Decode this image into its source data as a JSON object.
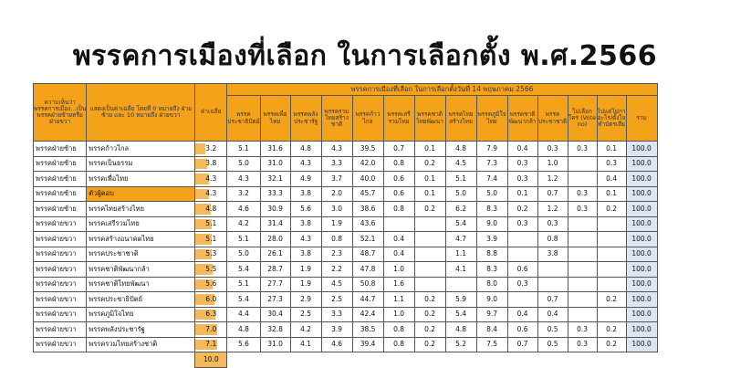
{
  "title": "พรรคการเมืองที่เลือก ในการเลือกตั้ง พ.ศ.2566",
  "header": {
    "col1": "ความเห็นว่าพรรคการเมือง...เป็นพรรคฝ่ายซ้ายหรือฝ่ายขวา",
    "col2": "แสดงเป็นค่าเฉลี่ย โดยที่ 0 หมายถึง ฝ่ายซ้าย และ 10 หมายถึง ฝ่ายขวา",
    "avg": "ค่าเฉลี่ย",
    "group": "พรรคการเมืองที่เลือก ในการเลือกตั้งวันที่ 14 พฤษภาคม 2566",
    "parties": [
      "พรรคประชาธิปัตย์",
      "พรรคเพื่อไทย",
      "พรรคพลังประชารัฐ",
      "พรรครวมไทยสร้างชาติ",
      "พรรคก้าวไกล",
      "พรรคเสรีรวมไทย",
      "พรรคชาติไทยพัฒนา",
      "พรรคไทยสร้างไทย",
      "พรรคภูมิใจไทย",
      "พรรคชาติพัฒนากล้า",
      "พรรคประชาชาติ",
      "ไม่เลือกใคร (Vote no)",
      "ไปแต่ไม่กาอะไร/ตั้งใจทำบัตรเสีย",
      "รวม"
    ]
  },
  "rows": [
    {
      "side": "พรรคฝ่ายซ้าย",
      "party": "พรรคก้าวไกล",
      "avg": "3.2",
      "avg_value": 3.2,
      "values": [
        "5.1",
        "31.6",
        "4.8",
        "4.3",
        "39.5",
        "0.7",
        "0.1",
        "4.8",
        "7.9",
        "0.4",
        "0.3",
        "0.3",
        "0.1",
        "100.0"
      ]
    },
    {
      "side": "พรรคฝ่ายซ้าย",
      "party": "พรรคเป็นธรรม",
      "avg": "3.8",
      "avg_value": 3.8,
      "values": [
        "5.0",
        "31.0",
        "4.3",
        "3.3",
        "42.0",
        "0.8",
        "0.2",
        "4.5",
        "7.3",
        "0.3",
        "1.0",
        "",
        "0.3",
        "100.0"
      ]
    },
    {
      "side": "พรรคฝ่ายซ้าย",
      "party": "พรรคเพื่อไทย",
      "avg": "4.3",
      "avg_value": 4.3,
      "values": [
        "4.3",
        "32.1",
        "4.9",
        "3.7",
        "40.0",
        "0.6",
        "0.1",
        "5.1",
        "7.4",
        "0.3",
        "1.2",
        "",
        "0.4",
        "100.0"
      ]
    },
    {
      "side": "พรรคฝ่ายซ้าย",
      "party": "ตัวผู้ตอบ",
      "avg": "4.3",
      "avg_value": 4.3,
      "highlight": true,
      "values": [
        "3.2",
        "33.3",
        "3.8",
        "2.0",
        "45.7",
        "0.6",
        "0.1",
        "5.0",
        "5.0",
        "0.1",
        "0.7",
        "0.3",
        "0.1",
        "100.0"
      ]
    },
    {
      "side": "พรรคฝ่ายซ้าย",
      "party": "พรรคไทยสร้างไทย",
      "avg": "4.8",
      "avg_value": 4.8,
      "values": [
        "4.6",
        "30.9",
        "5.6",
        "3.0",
        "38.6",
        "0.8",
        "0.2",
        "6.2",
        "8.3",
        "0.2",
        "1.2",
        "0.3",
        "0.2",
        "100.0"
      ]
    },
    {
      "side": "พรรคฝ่ายขวา",
      "party": "พรรคเสรีรวมไทย",
      "avg": "5.1",
      "avg_value": 5.1,
      "values": [
        "4.2",
        "31.4",
        "3.8",
        "1.9",
        "43.6",
        "",
        "",
        "5.4",
        "9.0",
        "0.3",
        "0.3",
        "",
        "",
        "100.0"
      ]
    },
    {
      "side": "พรรคฝ่ายขวา",
      "party": "พรรคสร้างอนาคตไทย",
      "avg": "5.1",
      "avg_value": 5.1,
      "values": [
        "5.1",
        "28.0",
        "4.3",
        "0.8",
        "52.1",
        "0.4",
        "",
        "4.7",
        "3.9",
        "",
        "0.8",
        "",
        "",
        "100.0"
      ]
    },
    {
      "side": "พรรคฝ่ายขวา",
      "party": "พรรคประชาชาติ",
      "avg": "5.3",
      "avg_value": 5.3,
      "values": [
        "5.0",
        "26.1",
        "3.8",
        "2.3",
        "48.7",
        "0.4",
        "",
        "1.1",
        "8.8",
        "",
        "3.8",
        "",
        "",
        "100.0"
      ]
    },
    {
      "side": "พรรคฝ่ายขวา",
      "party": "พรรคชาติพัฒนากล้า",
      "avg": "5.5",
      "avg_value": 5.5,
      "values": [
        "5.4",
        "28.7",
        "1.9",
        "2.2",
        "47.8",
        "1.0",
        "",
        "4.1",
        "8.3",
        "0.6",
        "",
        "",
        "",
        "100.0"
      ]
    },
    {
      "side": "พรรคฝ่ายขวา",
      "party": "พรรคชาติไทยพัฒนา",
      "avg": "5.6",
      "avg_value": 5.6,
      "values": [
        "5.1",
        "27.7",
        "1.9",
        "4.5",
        "50.8",
        "1.6",
        "",
        "",
        "8.0",
        "0.3",
        "",
        "",
        "",
        "100.0"
      ]
    },
    {
      "side": "พรรคฝ่ายขวา",
      "party": "พรรคประชาธิปัตย์",
      "avg": "6.0",
      "avg_value": 6.0,
      "values": [
        "5.4",
        "27.3",
        "2.9",
        "2.5",
        "44.7",
        "1.1",
        "0.2",
        "5.9",
        "9.0",
        "",
        "0.7",
        "",
        "0.2",
        "100.0"
      ]
    },
    {
      "side": "พรรคฝ่ายขวา",
      "party": "พรรคภูมิใจไทย",
      "avg": "6.3",
      "avg_value": 6.3,
      "values": [
        "4.4",
        "30.4",
        "2.5",
        "3.3",
        "42.4",
        "1.0",
        "0.2",
        "5.4",
        "9.7",
        "0.4",
        "0.4",
        "",
        "",
        "100.0"
      ]
    },
    {
      "side": "พรรคฝ่ายขวา",
      "party": "พรรคพลังประชารัฐ",
      "avg": "7.0",
      "avg_value": 7.0,
      "values": [
        "4.8",
        "32.8",
        "4.2",
        "3.9",
        "38.5",
        "0.8",
        "0.2",
        "4.8",
        "8.4",
        "0.6",
        "0.5",
        "0.3",
        "0.2",
        "100.0"
      ]
    },
    {
      "side": "พรรคฝ่ายขวา",
      "party": "พรรครวมไทยสร้างชาติ",
      "avg": "7.1",
      "avg_value": 7.1,
      "values": [
        "5.6",
        "31.0",
        "4.1",
        "4.6",
        "39.4",
        "0.8",
        "0.2",
        "5.2",
        "7.5",
        "0.7",
        "0.5",
        "0.3",
        "0.2",
        "100.0"
      ]
    }
  ],
  "footer": {
    "avg": "10.0"
  }
}
